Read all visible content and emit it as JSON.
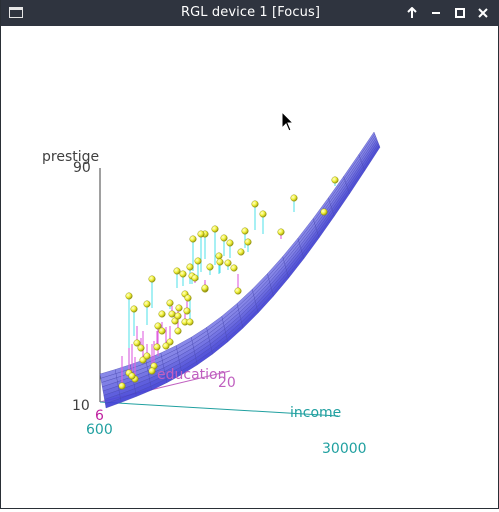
{
  "window": {
    "title": "RGL device 1 [Focus]",
    "icons": [
      "window-menu-icon",
      "keep-above-icon",
      "minimize-icon",
      "maximize-icon",
      "close-icon"
    ]
  },
  "plot": {
    "axis_labels": {
      "z": "prestige",
      "y": "education",
      "x": "income"
    },
    "tick_labels": {
      "z_max": "90",
      "z_min": "10",
      "y_min": "6",
      "y_max": "20",
      "x_min": "600",
      "x_max": "30000"
    },
    "colors": {
      "surface": "#7f7fe6",
      "points": "#f2f23c",
      "residual_above": "#5ee4ec",
      "residual_below": "#e060e0",
      "education_axis": "#c060c0",
      "income_axis": "#20a0a0",
      "prestige_axis": "#404040"
    }
  }
}
